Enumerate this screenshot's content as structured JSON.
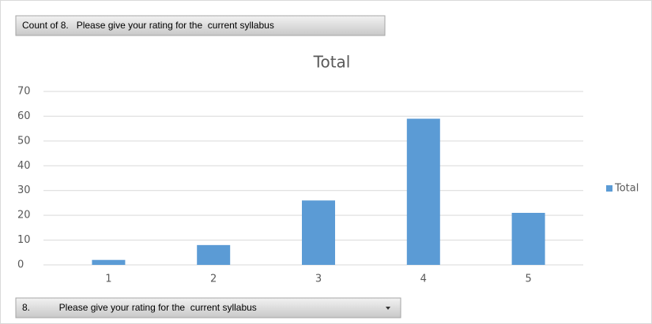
{
  "value_field": "Count of 8.   Please give your rating for the  current syllabus",
  "axis_field": "8.           Please give your rating for the  current syllabus",
  "chart_data": {
    "type": "bar",
    "title": "Total",
    "categories": [
      "1",
      "2",
      "3",
      "4",
      "5"
    ],
    "series": [
      {
        "name": "Total",
        "color": "#5b9bd5",
        "values": [
          2,
          8,
          26,
          59,
          21
        ]
      }
    ],
    "ylim": [
      0,
      70
    ],
    "yticks": [
      0,
      10,
      20,
      30,
      40,
      50,
      60,
      70
    ],
    "grid": true,
    "legend": "right"
  }
}
